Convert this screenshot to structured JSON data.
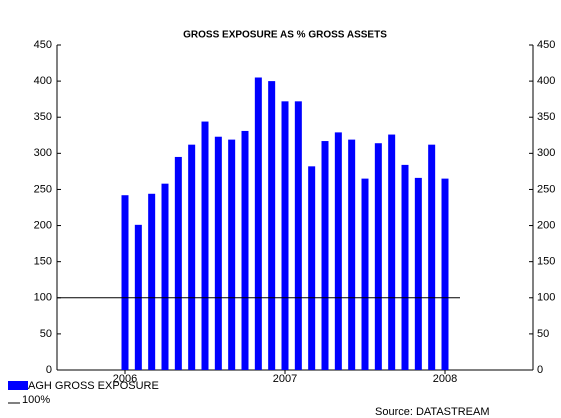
{
  "chart_data": {
    "type": "bar",
    "title": "GROSS EXPOSURE AS % GROSS ASSETS",
    "categories": [
      "2006",
      null,
      null,
      null,
      null,
      null,
      null,
      null,
      null,
      null,
      null,
      null,
      "2007",
      null,
      null,
      null,
      null,
      null,
      null,
      null,
      null,
      null,
      null,
      null,
      "2008"
    ],
    "series": [
      {
        "name": "AGH GROSS EXPOSURE",
        "color": "#0000ff",
        "values": [
          242,
          201,
          244,
          258,
          295,
          312,
          344,
          323,
          319,
          331,
          405,
          400,
          372,
          372,
          282,
          317,
          329,
          319,
          265,
          314,
          326,
          284,
          266,
          312,
          265
        ]
      }
    ],
    "reference_line": {
      "name": "100%",
      "value": 100,
      "color": "#000000"
    },
    "ylim": [
      0,
      450
    ],
    "yticks": [
      0,
      50,
      100,
      150,
      200,
      250,
      300,
      350,
      400,
      450
    ],
    "y2lim": [
      0,
      450
    ],
    "y2ticks": [
      0,
      50,
      100,
      150,
      200,
      250,
      300,
      350,
      400,
      450
    ],
    "grid": false,
    "source": "Source: DATASTREAM"
  }
}
